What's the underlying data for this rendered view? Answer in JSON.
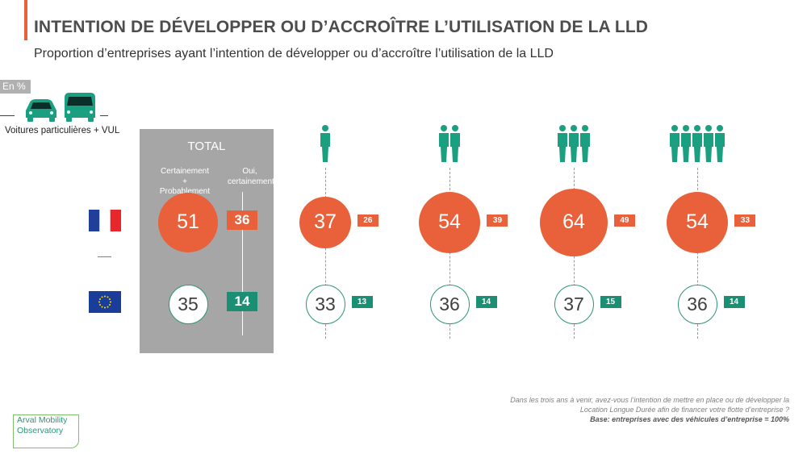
{
  "header": {
    "title": "INTENTION DE DÉVELOPPER OU D’ACCROÎTRE L’UTILISATION DE LA LLD",
    "subtitle": "Proportion d’entreprises ayant l’intention de développer ou d’accroître l’utilisation de la LLD"
  },
  "unit_label": "En %",
  "vehicle_label": "Voitures particulières + VUL",
  "total": {
    "title": "TOTAL",
    "col1": [
      "Certainement",
      "+",
      "Probablement"
    ],
    "col2": [
      "Oui,",
      "certainement"
    ]
  },
  "colors": {
    "france": "#e8613a",
    "europe": "#1a8f73",
    "panel": "#a6a6a6"
  },
  "chart_data": {
    "type": "bubble",
    "categories": [
      "TOTAL",
      "1 personne",
      "2 personnes",
      "3 personnes",
      "5 personnes"
    ],
    "category_icons": [
      "none",
      "person-icon",
      "two-people-icon",
      "three-people-icon",
      "five-people-icon"
    ],
    "series": [
      {
        "flag": "france-flag",
        "certainement_probablement": [
          51,
          37,
          54,
          64,
          54
        ],
        "oui_certainement": [
          36,
          26,
          39,
          49,
          33
        ]
      },
      {
        "flag": "eu-flag",
        "certainement_probablement": [
          35,
          33,
          36,
          37,
          36
        ],
        "oui_certainement": [
          14,
          13,
          14,
          15,
          14
        ]
      }
    ]
  },
  "labels": {
    "fr": {
      "big": [
        "51",
        "37",
        "54",
        "64",
        "54"
      ],
      "small": [
        "36",
        "26",
        "39",
        "49",
        "33"
      ]
    },
    "eu": {
      "big": [
        "35",
        "33",
        "36",
        "37",
        "36"
      ],
      "small": [
        "14",
        "13",
        "14",
        "15",
        "14"
      ]
    }
  },
  "footnote": {
    "question1": "Dans les trois ans à venir, avez-vous l’intention de mettre en place ou de développer la",
    "question2": "Location Longue Durée afin de financer votre flotte d’entreprise ?",
    "base": "Base: entreprises avec des véhicules d’entreprise = 100%"
  },
  "logo": {
    "line1": "Arval Mobility",
    "line2": "Observatory"
  }
}
